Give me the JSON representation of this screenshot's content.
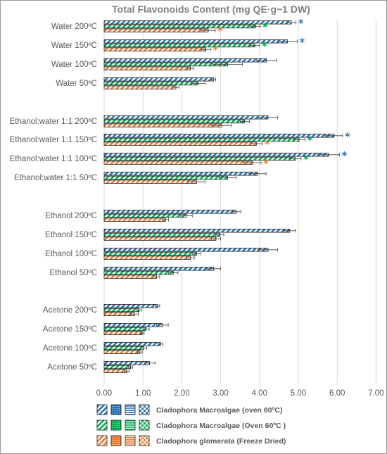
{
  "chart_data": {
    "type": "bar",
    "orientation": "horizontal",
    "title": "Total Flavonoids Content (mg QE·g−1 DW)",
    "xlim": [
      0,
      7
    ],
    "xticks": [
      "0.00",
      "1.00",
      "2.00",
      "3.00",
      "4.00",
      "5.00",
      "6.00",
      "7.00"
    ],
    "grid": true,
    "legend_position": "bottom",
    "groups": [
      {
        "name": "Water",
        "categories": [
          "Water 200ºC",
          "Water 150ºC",
          "Water 100ºC",
          "Water 50ºC"
        ]
      },
      {
        "name": "Ethanol:water 1:1",
        "categories": [
          "Ethanol:water 1:1 200ºC",
          "Ethanol:water 1:1 150ºC",
          "Ethanol:water 1:1 100ºC",
          "Ethanol:water 1:1 50ºC"
        ]
      },
      {
        "name": "Ethanol",
        "categories": [
          "Ethanol 200ºC",
          "Ethanol 150ºC",
          "Ethanol 100ºC",
          "Ethanol 50ºC"
        ]
      },
      {
        "name": "Acetone",
        "categories": [
          "Acetone  200ºC",
          "Acetone  150ºC",
          "Acetone  100ºC",
          "Acetone  50ºC"
        ]
      }
    ],
    "series": [
      {
        "name": "Cladophora Macroalgae (oven 80ºC)",
        "color": "#2e75b6",
        "values": [
          4.82,
          4.72,
          4.18,
          2.82,
          4.22,
          5.92,
          5.78,
          3.95,
          3.4,
          4.78,
          4.22,
          2.82,
          1.38,
          1.5,
          1.45,
          1.17
        ],
        "errors": [
          0.12,
          0.25,
          0.25,
          0.05,
          0.25,
          0.22,
          0.28,
          0.22,
          0.12,
          0.15,
          0.25,
          0.18,
          0.05,
          0.15,
          0.06,
          0.14
        ],
        "significance": [
          true,
          true,
          false,
          false,
          false,
          true,
          true,
          false,
          false,
          false,
          false,
          false,
          false,
          false,
          false,
          false
        ],
        "star_color": "#2e75b6"
      },
      {
        "name": "Cladophora Macroalgae (Oven 60ºC )",
        "color": "#00b050",
        "values": [
          3.9,
          3.88,
          3.18,
          2.42,
          3.62,
          5.02,
          4.92,
          3.18,
          2.12,
          2.98,
          2.38,
          1.78,
          0.9,
          1.08,
          1.02,
          0.68
        ],
        "errors": [
          0.12,
          0.12,
          0.38,
          0.18,
          0.12,
          0.15,
          0.15,
          0.22,
          0.15,
          0.1,
          0.1,
          0.12,
          0.05,
          0.08,
          0.08,
          0.05
        ],
        "significance": [
          true,
          true,
          false,
          false,
          false,
          true,
          true,
          false,
          false,
          false,
          false,
          false,
          false,
          false,
          false,
          false
        ],
        "star_color": "#00b050"
      },
      {
        "name": "Cladophora glomerata (Freeze Dried)",
        "color": "#ed7d31",
        "values": [
          2.68,
          2.62,
          2.22,
          1.85,
          3.02,
          3.92,
          3.82,
          2.38,
          1.58,
          2.88,
          2.22,
          1.35,
          0.78,
          0.98,
          0.92,
          0.58
        ],
        "errors": [
          0.18,
          0.12,
          0.08,
          0.08,
          0.25,
          0.15,
          0.22,
          0.22,
          0.08,
          0.12,
          0.1,
          0.08,
          0.1,
          0.05,
          0.06,
          0.06
        ],
        "significance": [
          true,
          true,
          false,
          false,
          false,
          true,
          true,
          false,
          false,
          false,
          false,
          false,
          false,
          false,
          false,
          false
        ],
        "star_color": "#ed7d31"
      }
    ]
  },
  "star_glyph": "*"
}
